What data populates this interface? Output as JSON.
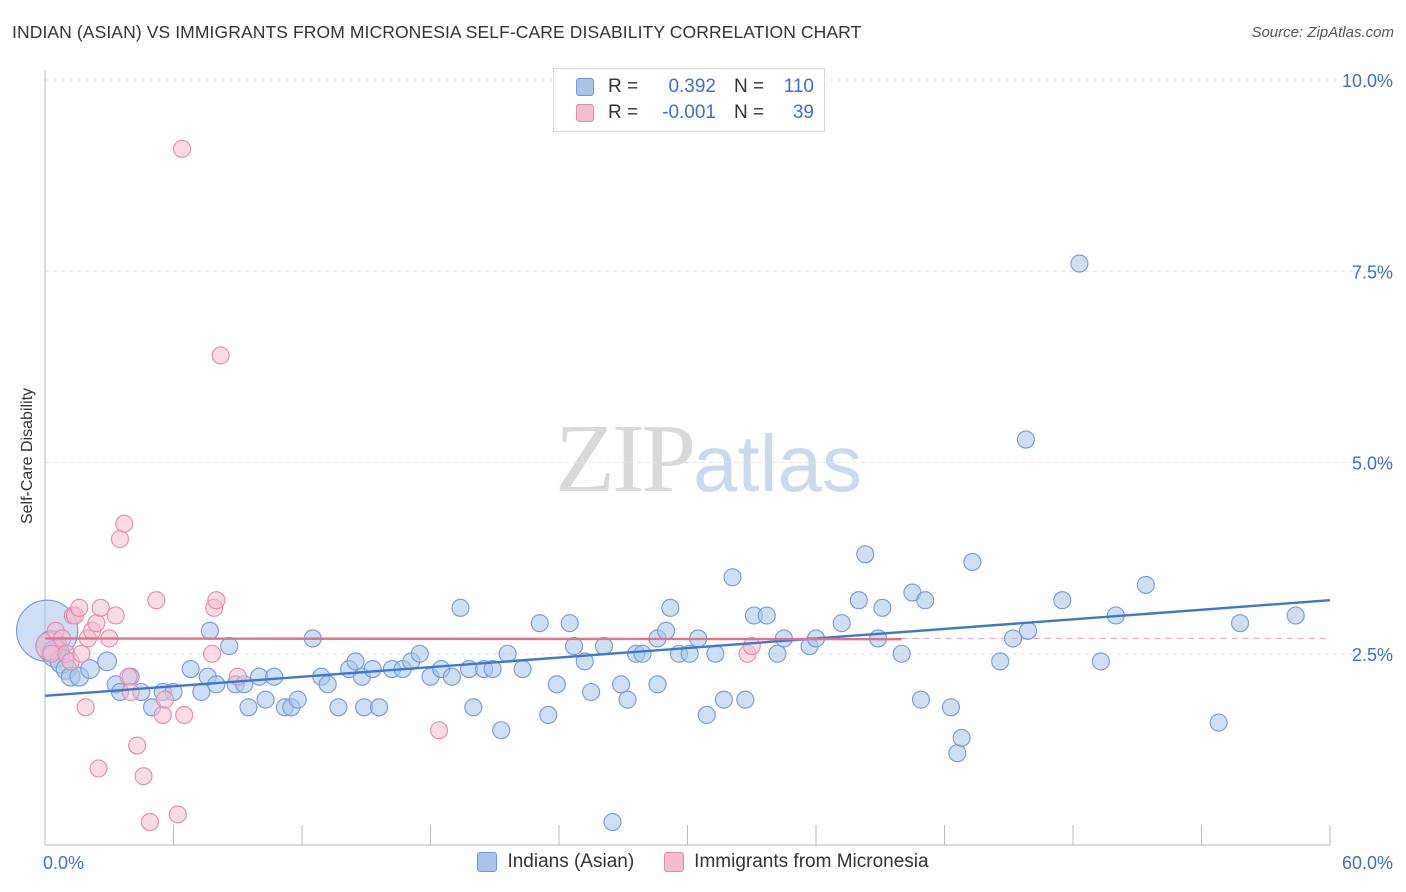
{
  "header": {
    "title": "INDIAN (ASIAN) VS IMMIGRANTS FROM MICRONESIA SELF-CARE DISABILITY CORRELATION CHART",
    "source": "Source: ZipAtlas.com"
  },
  "watermark": {
    "zip": "ZIP",
    "atlas": "atlas"
  },
  "legend": {
    "rows": [
      {
        "r_label": "R =",
        "r_value": "0.392",
        "n_label": "N =",
        "n_value": "110",
        "color": "#a8c4ea",
        "border": "#6f9bd8"
      },
      {
        "r_label": "R =",
        "r_value": "-0.001",
        "n_label": "N =",
        "n_value": "39",
        "color": "#f5bcd0",
        "border": "#e58aa9"
      }
    ]
  },
  "chart_data": {
    "type": "scatter",
    "ylabel": "Self-Care Disability",
    "xlim": [
      0,
      60
    ],
    "ylim": [
      0,
      10
    ],
    "x_tick_labels": [
      "0.0%",
      "60.0%"
    ],
    "y_ticks": [
      {
        "value": 2.5,
        "label": "2.5%"
      },
      {
        "value": 5.0,
        "label": "5.0%"
      },
      {
        "value": 7.5,
        "label": "7.5%"
      },
      {
        "value": 10.0,
        "label": "10.0%"
      }
    ],
    "grid": "horizontal-dashed",
    "dashed_reference_y": 2.7,
    "series": [
      {
        "name": "Indians (Asian)",
        "color": "#a8c4ea",
        "stroke": "#6f9bd8",
        "trend": {
          "x0": 0,
          "y0": 1.95,
          "x1": 60,
          "y1": 3.2,
          "color": "#3c78d0"
        },
        "points": [
          [
            0.1,
            2.8,
            36
          ],
          [
            0.3,
            2.6,
            18
          ],
          [
            0.5,
            2.5,
            16
          ],
          [
            0.8,
            2.4,
            14
          ],
          [
            1.0,
            2.3,
            12
          ],
          [
            1.2,
            2.2,
            11
          ],
          [
            1.6,
            2.2,
            11
          ],
          [
            2.1,
            2.3,
            11
          ],
          [
            2.9,
            2.4,
            11
          ],
          [
            3.3,
            2.1,
            10
          ],
          [
            3.5,
            2.0,
            10
          ],
          [
            4.0,
            2.2,
            10
          ],
          [
            4.5,
            2.0,
            10
          ],
          [
            5.5,
            2.0,
            10
          ],
          [
            5.0,
            1.8,
            10
          ],
          [
            6.0,
            2.0,
            10
          ],
          [
            6.8,
            2.3,
            10
          ],
          [
            7.3,
            2.0,
            10
          ],
          [
            7.6,
            2.2,
            10
          ],
          [
            7.7,
            2.8,
            10
          ],
          [
            8.0,
            2.1,
            10
          ],
          [
            8.6,
            2.6,
            10
          ],
          [
            8.9,
            2.1,
            10
          ],
          [
            9.3,
            2.1,
            10
          ],
          [
            9.5,
            1.8,
            10
          ],
          [
            10.0,
            2.2,
            10
          ],
          [
            10.3,
            1.9,
            10
          ],
          [
            10.7,
            2.2,
            10
          ],
          [
            11.2,
            1.8,
            10
          ],
          [
            11.5,
            1.8,
            10
          ],
          [
            11.8,
            1.9,
            10
          ],
          [
            12.5,
            2.7,
            10
          ],
          [
            12.9,
            2.2,
            10
          ],
          [
            13.2,
            2.1,
            10
          ],
          [
            13.7,
            1.8,
            10
          ],
          [
            14.2,
            2.3,
            10
          ],
          [
            14.5,
            2.4,
            10
          ],
          [
            14.8,
            2.2,
            10
          ],
          [
            14.9,
            1.8,
            10
          ],
          [
            15.3,
            2.3,
            10
          ],
          [
            15.6,
            1.8,
            10
          ],
          [
            16.2,
            2.3,
            10
          ],
          [
            16.7,
            2.3,
            10
          ],
          [
            17.1,
            2.4,
            10
          ],
          [
            17.5,
            2.5,
            10
          ],
          [
            18.0,
            2.2,
            10
          ],
          [
            18.5,
            2.3,
            10
          ],
          [
            19.0,
            2.2,
            10
          ],
          [
            19.4,
            3.1,
            10
          ],
          [
            19.8,
            2.3,
            10
          ],
          [
            20.0,
            1.8,
            10
          ],
          [
            20.5,
            2.3,
            10
          ],
          [
            20.9,
            2.3,
            10
          ],
          [
            21.3,
            1.5,
            10
          ],
          [
            21.6,
            2.5,
            10
          ],
          [
            22.3,
            2.3,
            10
          ],
          [
            23.1,
            2.9,
            10
          ],
          [
            23.5,
            1.7,
            10
          ],
          [
            23.9,
            2.1,
            10
          ],
          [
            24.5,
            2.9,
            10
          ],
          [
            24.7,
            2.6,
            10
          ],
          [
            25.2,
            2.4,
            10
          ],
          [
            25.5,
            2.0,
            10
          ],
          [
            26.1,
            2.6,
            10
          ],
          [
            26.5,
            0.3,
            10
          ],
          [
            26.9,
            2.1,
            10
          ],
          [
            27.2,
            1.9,
            10
          ],
          [
            27.6,
            2.5,
            10
          ],
          [
            27.9,
            2.5,
            10
          ],
          [
            28.6,
            2.7,
            10
          ],
          [
            28.6,
            2.1,
            10
          ],
          [
            29.2,
            3.1,
            10
          ],
          [
            29.0,
            2.8,
            10
          ],
          [
            29.6,
            2.5,
            10
          ],
          [
            30.1,
            2.5,
            10
          ],
          [
            30.5,
            2.7,
            10
          ],
          [
            30.9,
            1.7,
            10
          ],
          [
            31.3,
            2.5,
            10
          ],
          [
            31.7,
            1.9,
            10
          ],
          [
            32.1,
            3.5,
            10
          ],
          [
            32.7,
            1.9,
            10
          ],
          [
            33.1,
            3.0,
            10
          ],
          [
            33.7,
            3.0,
            10
          ],
          [
            34.2,
            2.5,
            10
          ],
          [
            34.5,
            2.7,
            10
          ],
          [
            35.7,
            2.6,
            10
          ],
          [
            36.0,
            2.7,
            10
          ],
          [
            37.2,
            2.9,
            10
          ],
          [
            38.0,
            3.2,
            10
          ],
          [
            38.3,
            3.8,
            10
          ],
          [
            38.9,
            2.7,
            10
          ],
          [
            39.1,
            3.1,
            10
          ],
          [
            40.0,
            2.5,
            10
          ],
          [
            40.5,
            3.3,
            10
          ],
          [
            40.9,
            1.9,
            10
          ],
          [
            41.1,
            3.2,
            10
          ],
          [
            42.3,
            1.8,
            10
          ],
          [
            42.6,
            1.2,
            10
          ],
          [
            42.8,
            1.4,
            10
          ],
          [
            43.3,
            3.7,
            10
          ],
          [
            44.6,
            2.4,
            10
          ],
          [
            45.2,
            2.7,
            10
          ],
          [
            45.8,
            5.3,
            10
          ],
          [
            45.9,
            2.8,
            10
          ],
          [
            47.5,
            3.2,
            10
          ],
          [
            48.3,
            7.6,
            10
          ],
          [
            49.3,
            2.4,
            10
          ],
          [
            50.0,
            3.0,
            10
          ],
          [
            51.4,
            3.4,
            10
          ],
          [
            54.8,
            1.6,
            10
          ],
          [
            55.8,
            2.9,
            10
          ],
          [
            58.4,
            3.0,
            10
          ]
        ]
      },
      {
        "name": "Immigrants from Micronesia",
        "color": "#f5bcd0",
        "stroke": "#e58aa9",
        "trend": {
          "x0": 0,
          "y0": 2.7,
          "x1": 40,
          "y1": 2.69,
          "color": "#e0718f"
        },
        "points": [
          [
            0.2,
            2.6,
            16
          ],
          [
            0.3,
            2.5,
            10
          ],
          [
            0.5,
            2.8,
            10
          ],
          [
            0.8,
            2.7,
            10
          ],
          [
            1.0,
            2.5,
            10
          ],
          [
            1.2,
            2.4,
            10
          ],
          [
            1.3,
            3.0,
            10
          ],
          [
            1.4,
            3.0,
            10
          ],
          [
            1.6,
            3.1,
            10
          ],
          [
            1.7,
            2.5,
            10
          ],
          [
            1.9,
            1.8,
            10
          ],
          [
            2.0,
            2.7,
            10
          ],
          [
            2.2,
            2.8,
            10
          ],
          [
            2.4,
            2.9,
            10
          ],
          [
            2.5,
            1.0,
            10
          ],
          [
            2.6,
            3.1,
            10
          ],
          [
            3.0,
            2.7,
            10
          ],
          [
            3.3,
            3.0,
            10
          ],
          [
            3.5,
            4.0,
            10
          ],
          [
            3.7,
            4.2,
            10
          ],
          [
            3.9,
            2.2,
            10
          ],
          [
            4.0,
            2.0,
            10
          ],
          [
            4.3,
            1.3,
            10
          ],
          [
            4.6,
            0.9,
            10
          ],
          [
            4.9,
            0.3,
            10
          ],
          [
            5.2,
            3.2,
            10
          ],
          [
            5.5,
            1.7,
            10
          ],
          [
            5.6,
            1.9,
            10
          ],
          [
            6.2,
            0.4,
            10
          ],
          [
            6.4,
            9.1,
            10
          ],
          [
            6.5,
            1.7,
            10
          ],
          [
            7.8,
            2.5,
            10
          ],
          [
            7.9,
            3.1,
            10
          ],
          [
            8.0,
            3.2,
            10
          ],
          [
            8.2,
            6.4,
            10
          ],
          [
            9.0,
            2.2,
            10
          ],
          [
            18.4,
            1.5,
            10
          ],
          [
            32.8,
            2.5,
            10
          ],
          [
            33.0,
            2.6,
            10
          ]
        ]
      }
    ]
  }
}
